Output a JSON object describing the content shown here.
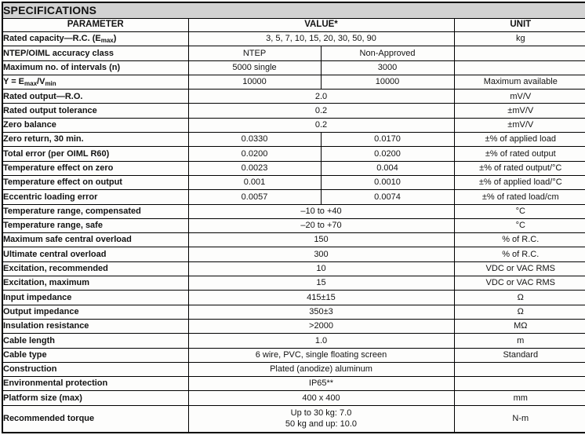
{
  "title": "SPECIFICATIONS",
  "colors": {
    "title_bar_bg": "#d2d2d2",
    "border": "#000000",
    "text": "#131313",
    "row_bg": "#ffffff"
  },
  "table": {
    "headers": {
      "parameter": "PARAMETER",
      "value": "VALUE*",
      "unit": "UNIT"
    },
    "rows": [
      {
        "parameter": [
          {
            "t": "Rated capacity—R.C. (E"
          },
          {
            "t": "max",
            "sub": true
          },
          {
            "t": ")"
          }
        ],
        "value": "3, 5, 7, 10, 15, 20, 30, 50, 90",
        "unit": "kg"
      },
      {
        "parameter": [
          {
            "t": "NTEP/OIML accuracy class"
          }
        ],
        "value_left": "NTEP",
        "value_right": "Non-Approved",
        "unit": ""
      },
      {
        "parameter": [
          {
            "t": "Maximum no. of intervals (n)"
          }
        ],
        "value_left": "5000 single",
        "value_right": "3000",
        "unit": ""
      },
      {
        "parameter": [
          {
            "t": "Y = E"
          },
          {
            "t": "max",
            "sub": true
          },
          {
            "t": "/V"
          },
          {
            "t": "min",
            "sub": true
          }
        ],
        "value_left": "10000",
        "value_right": "10000",
        "unit": "Maximum available"
      },
      {
        "parameter": [
          {
            "t": "Rated output—R.O."
          }
        ],
        "value": "2.0",
        "unit": "mV/V"
      },
      {
        "parameter": [
          {
            "t": "Rated output tolerance"
          }
        ],
        "value": "0.2",
        "unit": "±mV/V"
      },
      {
        "parameter": [
          {
            "t": "Zero balance"
          }
        ],
        "value": "0.2",
        "unit": "±mV/V"
      },
      {
        "parameter": [
          {
            "t": "Zero return, 30 min."
          }
        ],
        "value_left": "0.0330",
        "value_right": "0.0170",
        "unit": "±% of applied load"
      },
      {
        "parameter": [
          {
            "t": "Total error (per OIML R60)"
          }
        ],
        "value_left": "0.0200",
        "value_right": "0.0200",
        "unit": "±% of rated output"
      },
      {
        "parameter": [
          {
            "t": "Temperature effect on zero"
          }
        ],
        "value_left": "0.0023",
        "value_right": "0.004",
        "unit": "±% of rated output/°C"
      },
      {
        "parameter": [
          {
            "t": "Temperature effect on output"
          }
        ],
        "value_left": "0.001",
        "value_right": "0.0010",
        "unit": "±% of applied load/°C"
      },
      {
        "parameter": [
          {
            "t": "Eccentric loading error"
          }
        ],
        "value_left": "0.0057",
        "value_right": "0.0074",
        "unit": "±% of rated load/cm"
      },
      {
        "parameter": [
          {
            "t": "Temperature range, compensated"
          }
        ],
        "value": "–10 to +40",
        "unit": "°C"
      },
      {
        "parameter": [
          {
            "t": "Temperature range, safe"
          }
        ],
        "value": "–20 to +70",
        "unit": "°C"
      },
      {
        "parameter": [
          {
            "t": "Maximum safe central overload"
          }
        ],
        "value": "150",
        "unit": "% of R.C."
      },
      {
        "parameter": [
          {
            "t": "Ultimate central overload"
          }
        ],
        "value": "300",
        "unit": "% of R.C."
      },
      {
        "parameter": [
          {
            "t": "Excitation, recommended"
          }
        ],
        "value": "10",
        "unit": "VDC or VAC RMS"
      },
      {
        "parameter": [
          {
            "t": "Excitation, maximum"
          }
        ],
        "value": "15",
        "unit": "VDC or VAC RMS"
      },
      {
        "parameter": [
          {
            "t": "Input impedance"
          }
        ],
        "value": "415±15",
        "unit": "Ω"
      },
      {
        "parameter": [
          {
            "t": "Output impedance"
          }
        ],
        "value": "350±3",
        "unit": "Ω"
      },
      {
        "parameter": [
          {
            "t": "Insulation resistance"
          }
        ],
        "value": ">2000",
        "unit": "MΩ"
      },
      {
        "parameter": [
          {
            "t": "Cable length"
          }
        ],
        "value": "1.0",
        "unit": "m"
      },
      {
        "parameter": [
          {
            "t": "Cable type"
          }
        ],
        "value": "6 wire, PVC, single floating screen",
        "unit": "Standard"
      },
      {
        "parameter": [
          {
            "t": "Construction"
          }
        ],
        "value": "Plated (anodize) aluminum",
        "unit": ""
      },
      {
        "parameter": [
          {
            "t": "Environmental protection"
          }
        ],
        "value": "IP65**",
        "unit": ""
      },
      {
        "parameter": [
          {
            "t": "Platform size (max)"
          }
        ],
        "value": "400 x 400",
        "unit": "mm"
      },
      {
        "parameter": [
          {
            "t": "Recommended torque"
          }
        ],
        "value_lines": [
          "Up to 30 kg: 7.0",
          "50 kg and up: 10.0"
        ],
        "unit": "N-m"
      }
    ]
  }
}
